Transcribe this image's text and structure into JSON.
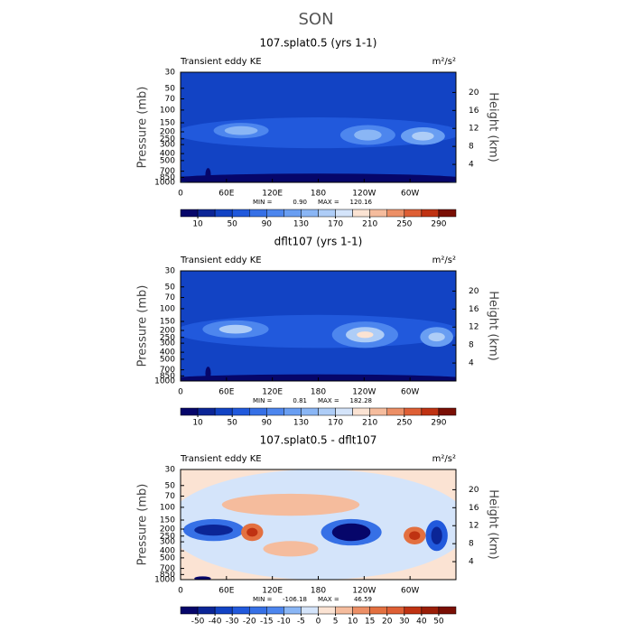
{
  "title": "SON",
  "chart_data": [
    {
      "type": "contour",
      "title": "107.splat0.5 (yrs 1-1)",
      "left_label": "Transient eddy KE",
      "units": "m²/s²",
      "ylabel": "Pressure (mb)",
      "y2label": "Height (km)",
      "xlim": [
        0,
        360
      ],
      "xticks": [
        0,
        {
          "value": 60,
          "label": "60E"
        },
        {
          "value": 120,
          "label": "120E"
        },
        180,
        {
          "value": 240,
          "label": "120W"
        },
        {
          "value": 300,
          "label": "60W"
        }
      ],
      "ylim": [
        1000,
        30
      ],
      "log": true,
      "yticks": [
        30,
        50,
        70,
        100,
        150,
        200,
        250,
        300,
        400,
        500,
        700,
        850,
        1000
      ],
      "y2lim": [
        0,
        24.5
      ],
      "y2ticks": [
        4,
        8,
        12,
        16,
        20
      ],
      "stats": [
        {
          "name": "MIN =",
          "value": 0.9,
          "label": "0.90"
        },
        {
          "name": "MAX =",
          "value": 120.16,
          "label": "120.16"
        }
      ],
      "levels": [
        10,
        30,
        50,
        70,
        90,
        110,
        130,
        150,
        170,
        190,
        210,
        230,
        250,
        270,
        290
      ],
      "colorbar_ticks": [
        10,
        50,
        90,
        130,
        170,
        210,
        250,
        290
      ],
      "colors": [
        "#06066a",
        "#0b2596",
        "#1243c4",
        "#2159dc",
        "#3670e6",
        "#4d86ee",
        "#699ef2",
        "#8ab6f5",
        "#aecdf7",
        "#d4e4fa",
        "#fbe3d3",
        "#f5bc9d",
        "#ec8f66",
        "#de5f35",
        "#bf3212",
        "#7a0f05"
      ]
    },
    {
      "type": "contour",
      "title": "dflt107 (yrs 1-1)",
      "left_label": "Transient eddy KE",
      "units": "m²/s²",
      "ylabel": "Pressure (mb)",
      "y2label": "Height (km)",
      "xlim": [
        0,
        360
      ],
      "xticks": [
        0,
        {
          "value": 60,
          "label": "60E"
        },
        {
          "value": 120,
          "label": "120E"
        },
        180,
        {
          "value": 240,
          "label": "120W"
        },
        {
          "value": 300,
          "label": "60W"
        }
      ],
      "ylim": [
        1000,
        30
      ],
      "log": true,
      "yticks": [
        30,
        50,
        70,
        100,
        150,
        200,
        250,
        300,
        400,
        500,
        700,
        850,
        1000
      ],
      "y2lim": [
        0,
        24.5
      ],
      "y2ticks": [
        4,
        8,
        12,
        16,
        20
      ],
      "stats": [
        {
          "name": "MIN =",
          "value": 0.81,
          "label": "0.81"
        },
        {
          "name": "MAX =",
          "value": 182.28,
          "label": "182.28"
        }
      ],
      "levels": [
        10,
        30,
        50,
        70,
        90,
        110,
        130,
        150,
        170,
        190,
        210,
        230,
        250,
        270,
        290
      ],
      "colorbar_ticks": [
        10,
        50,
        90,
        130,
        170,
        210,
        250,
        290
      ],
      "colors": [
        "#06066a",
        "#0b2596",
        "#1243c4",
        "#2159dc",
        "#3670e6",
        "#4d86ee",
        "#699ef2",
        "#8ab6f5",
        "#aecdf7",
        "#d4e4fa",
        "#fbe3d3",
        "#f5bc9d",
        "#ec8f66",
        "#de5f35",
        "#bf3212",
        "#7a0f05"
      ]
    },
    {
      "type": "contour",
      "title": "107.splat0.5 - dflt107",
      "left_label": "Transient eddy KE",
      "units": "m²/s²",
      "ylabel": "Pressure (mb)",
      "y2label": "Height (km)",
      "xlim": [
        0,
        360
      ],
      "xticks": [
        0,
        {
          "value": 60,
          "label": "60E"
        },
        {
          "value": 120,
          "label": "120E"
        },
        180,
        {
          "value": 240,
          "label": "120W"
        },
        {
          "value": 300,
          "label": "60W"
        }
      ],
      "ylim": [
        1000,
        30
      ],
      "log": true,
      "yticks": [
        30,
        50,
        70,
        100,
        150,
        200,
        250,
        300,
        400,
        500,
        700,
        850,
        1000
      ],
      "y2lim": [
        0,
        24.5
      ],
      "y2ticks": [
        4,
        8,
        12,
        16,
        20
      ],
      "stats": [
        {
          "name": "MIN =",
          "value": -106.18,
          "label": "-106.18"
        },
        {
          "name": "MAX =",
          "value": 46.59,
          "label": "46.59"
        }
      ],
      "levels": [
        -50,
        -40,
        -30,
        -20,
        -15,
        -10,
        -5,
        0,
        5,
        10,
        15,
        20,
        30,
        40,
        50
      ],
      "colorbar_ticks": [
        -50,
        -40,
        -30,
        -20,
        -15,
        -10,
        -5,
        0,
        5,
        10,
        15,
        20,
        30,
        40,
        50
      ],
      "colors": [
        "#06066a",
        "#0b2596",
        "#1243c4",
        "#2159dc",
        "#3670e6",
        "#4d86ee",
        "#8ab6f5",
        "#d4e4fa",
        "#fbe3d3",
        "#f5bc9d",
        "#ec8f66",
        "#e37040",
        "#de5f35",
        "#bf3212",
        "#9a1e08",
        "#7a0f05"
      ]
    }
  ]
}
